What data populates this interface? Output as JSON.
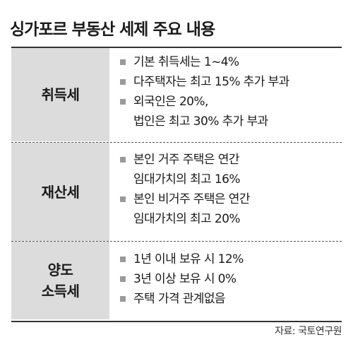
{
  "title": "싱가포르 부동산 세제 주요 내용",
  "rows": [
    {
      "category": "취득세",
      "items": [
        "기본 취득세는 1~4%",
        "다주택자는 최고 15% 추가 부과",
        "외국인은 20%,\n법인은 최고 30% 추가 부과"
      ]
    },
    {
      "category": "재산세",
      "items": [
        "본인 거주 주택은 연간\n임대가치의 최고 16%",
        "본인 비거주 주택은 연간\n임대가치의 최고 20%"
      ]
    },
    {
      "category": "양도\n소득세",
      "items": [
        "1년 이내 보유 시 12%",
        "3년 이상 보유 시 0%",
        "주택 가격 관계없음"
      ]
    }
  ],
  "source": "자료: 국토연구원"
}
